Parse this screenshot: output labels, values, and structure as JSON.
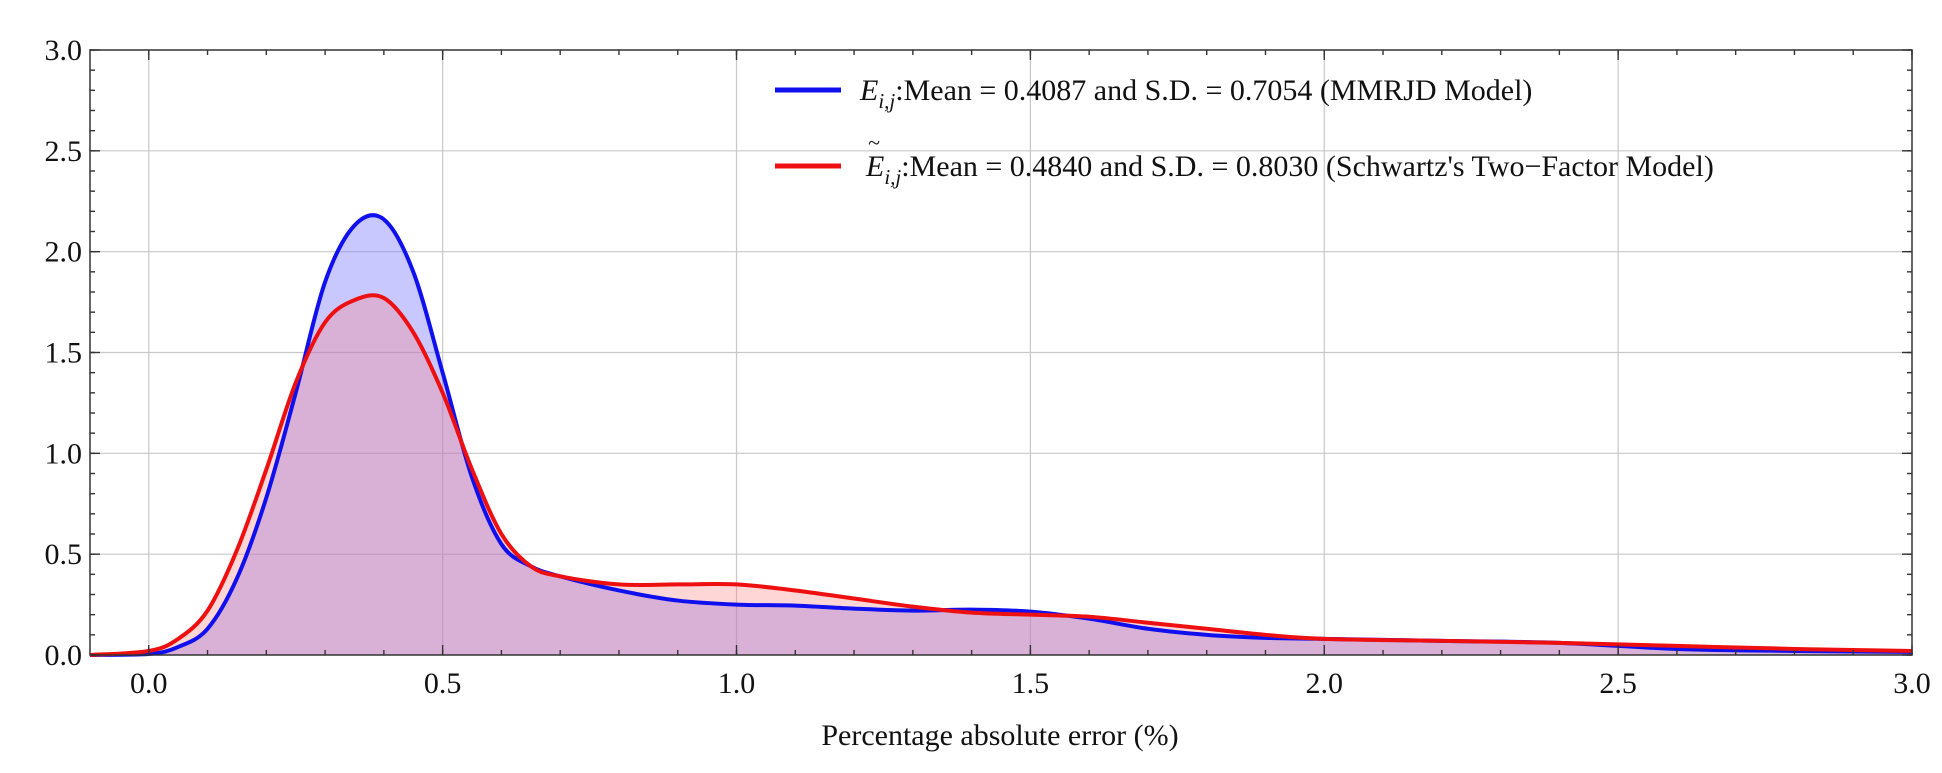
{
  "chart_data": {
    "type": "area",
    "title": "",
    "xlabel": "Percentage absolute error (%)",
    "ylabel": "",
    "xlim": [
      -0.1,
      3.0
    ],
    "ylim": [
      0.0,
      3.0
    ],
    "x_ticks": [
      "0.0",
      "0.5",
      "1.0",
      "1.5",
      "2.0",
      "2.5",
      "3.0"
    ],
    "y_ticks": [
      "0.0",
      "0.5",
      "1.0",
      "1.5",
      "2.0",
      "2.5",
      "3.0"
    ],
    "grid": true,
    "legend_position": "top-right",
    "series": [
      {
        "name": "MMRJD Model",
        "legend_symbol": "E",
        "legend_subscript": "i,j",
        "legend_tilde": false,
        "legend_text": ":Mean = 0.4087 and S.D. = 0.7054 (MMRJD Model)",
        "line_color": "#1010ee",
        "fill_color": "#7b7bff",
        "fill_opacity": 0.42,
        "x": [
          -0.1,
          0.0,
          0.05,
          0.1,
          0.15,
          0.2,
          0.25,
          0.3,
          0.35,
          0.4,
          0.45,
          0.5,
          0.55,
          0.6,
          0.65,
          0.7,
          0.8,
          0.9,
          1.0,
          1.1,
          1.2,
          1.3,
          1.4,
          1.5,
          1.6,
          1.7,
          1.8,
          1.9,
          2.0,
          2.2,
          2.4,
          2.6,
          2.8,
          3.0
        ],
        "y": [
          0.0,
          0.005,
          0.04,
          0.13,
          0.38,
          0.78,
          1.3,
          1.85,
          2.13,
          2.16,
          1.9,
          1.4,
          0.88,
          0.55,
          0.44,
          0.39,
          0.32,
          0.27,
          0.25,
          0.245,
          0.23,
          0.22,
          0.225,
          0.215,
          0.18,
          0.13,
          0.1,
          0.085,
          0.08,
          0.07,
          0.06,
          0.03,
          0.02,
          0.015
        ]
      },
      {
        "name": "Schwartz's Two-Factor Model",
        "legend_symbol": "E",
        "legend_subscript": "i,j",
        "legend_tilde": true,
        "legend_text": ":Mean = 0.4840 and S.D. = 0.8030 (Schwartz's Two−Factor Model)",
        "line_color": "#ee1010",
        "fill_color": "#ff8080",
        "fill_opacity": 0.32,
        "x": [
          -0.1,
          0.0,
          0.05,
          0.1,
          0.15,
          0.2,
          0.25,
          0.3,
          0.35,
          0.4,
          0.45,
          0.5,
          0.55,
          0.6,
          0.65,
          0.7,
          0.8,
          0.9,
          1.0,
          1.1,
          1.2,
          1.3,
          1.4,
          1.5,
          1.6,
          1.7,
          1.8,
          1.9,
          2.0,
          2.2,
          2.4,
          2.6,
          2.8,
          3.0
        ],
        "y": [
          0.0,
          0.02,
          0.08,
          0.22,
          0.52,
          0.92,
          1.35,
          1.65,
          1.76,
          1.77,
          1.6,
          1.3,
          0.92,
          0.6,
          0.44,
          0.39,
          0.35,
          0.35,
          0.35,
          0.32,
          0.28,
          0.24,
          0.21,
          0.2,
          0.19,
          0.16,
          0.13,
          0.1,
          0.08,
          0.07,
          0.06,
          0.045,
          0.03,
          0.02
        ]
      }
    ]
  }
}
